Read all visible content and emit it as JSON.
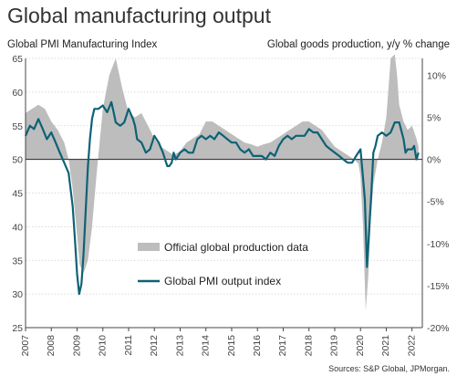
{
  "chart_data": {
    "type": "line",
    "title": "Global manufacturing output",
    "left_axis_title": "Global PMI Manufacturing  Index",
    "right_axis_title": "Global goods production, y/y % change",
    "source": "Sources: S&P Global, JPMorgan.",
    "ylim_left": [
      25,
      65
    ],
    "ylim_right": [
      -20,
      12
    ],
    "left_ticks": [
      "65",
      "60",
      "55",
      "50",
      "45",
      "40",
      "35",
      "30",
      "25"
    ],
    "right_ticks": [
      "10%",
      "5%",
      "0%",
      "-5%",
      "-10%",
      "-15%",
      "-20%"
    ],
    "x_ticks": [
      "2007",
      "2008",
      "2009",
      "2010",
      "2011",
      "2012",
      "2013",
      "2014",
      "2015",
      "2016",
      "2017",
      "2018",
      "2019",
      "2020",
      "2021",
      "2022"
    ],
    "series": [
      {
        "name": "Official global production data",
        "type": "area",
        "axis": "right",
        "color": "#bdbdbd",
        "x": [
          2007.0,
          2007.25,
          2007.5,
          2007.75,
          2008.0,
          2008.25,
          2008.5,
          2008.67,
          2008.83,
          2009.0,
          2009.1,
          2009.25,
          2009.42,
          2009.58,
          2009.75,
          2010.0,
          2010.25,
          2010.5,
          2010.75,
          2011.0,
          2011.25,
          2011.5,
          2011.75,
          2012.0,
          2012.25,
          2012.5,
          2012.75,
          2013.0,
          2013.25,
          2013.5,
          2013.75,
          2014.0,
          2014.25,
          2014.5,
          2014.75,
          2015.0,
          2015.25,
          2015.5,
          2015.75,
          2016.0,
          2016.25,
          2016.5,
          2016.75,
          2017.0,
          2017.25,
          2017.5,
          2017.75,
          2018.0,
          2018.25,
          2018.5,
          2018.75,
          2019.0,
          2019.25,
          2019.5,
          2019.75,
          2019.92,
          2020.0,
          2020.1,
          2020.2,
          2020.3,
          2020.4,
          2020.5,
          2020.67,
          2020.83,
          2021.0,
          2021.17,
          2021.33,
          2021.42,
          2021.5,
          2021.67,
          2021.83,
          2022.0,
          2022.17,
          2022.25
        ],
        "y": [
          5.5,
          6.0,
          6.5,
          6.0,
          4.5,
          3.5,
          2.0,
          0.0,
          -3.5,
          -9.0,
          -12.5,
          -13.5,
          -12.0,
          -8.0,
          -2.0,
          6.0,
          10.0,
          12.0,
          8.5,
          5.5,
          5.0,
          5.5,
          4.0,
          2.5,
          1.5,
          1.0,
          0.5,
          1.0,
          2.0,
          2.5,
          3.0,
          4.5,
          4.5,
          4.0,
          3.5,
          3.0,
          2.5,
          2.0,
          1.8,
          1.5,
          1.8,
          2.0,
          2.5,
          3.0,
          3.5,
          4.0,
          4.5,
          4.5,
          4.0,
          3.5,
          2.5,
          1.5,
          1.0,
          0.5,
          0.0,
          -0.5,
          -2.0,
          -8.0,
          -18.0,
          -14.0,
          -7.0,
          -3.0,
          0.0,
          2.0,
          5.0,
          12.0,
          12.5,
          10.0,
          6.5,
          4.5,
          3.5,
          4.0,
          2.5,
          1.5
        ]
      },
      {
        "name": "Global PMI output index",
        "type": "line",
        "axis": "left",
        "color": "#0d6275",
        "x": [
          2007.0,
          2007.17,
          2007.33,
          2007.5,
          2007.67,
          2007.83,
          2008.0,
          2008.17,
          2008.33,
          2008.5,
          2008.67,
          2008.83,
          2008.92,
          2009.0,
          2009.08,
          2009.17,
          2009.25,
          2009.33,
          2009.42,
          2009.5,
          2009.58,
          2009.67,
          2009.83,
          2010.0,
          2010.17,
          2010.33,
          2010.42,
          2010.5,
          2010.67,
          2010.83,
          2011.0,
          2011.17,
          2011.25,
          2011.33,
          2011.5,
          2011.67,
          2011.83,
          2012.0,
          2012.17,
          2012.33,
          2012.5,
          2012.58,
          2012.67,
          2012.75,
          2012.83,
          2013.0,
          2013.17,
          2013.33,
          2013.5,
          2013.67,
          2013.83,
          2014.0,
          2014.17,
          2014.33,
          2014.5,
          2014.67,
          2014.83,
          2015.0,
          2015.17,
          2015.33,
          2015.5,
          2015.67,
          2015.83,
          2016.0,
          2016.17,
          2016.33,
          2016.5,
          2016.67,
          2016.83,
          2017.0,
          2017.17,
          2017.33,
          2017.5,
          2017.67,
          2017.83,
          2018.0,
          2018.17,
          2018.33,
          2018.5,
          2018.67,
          2018.83,
          2019.0,
          2019.17,
          2019.33,
          2019.5,
          2019.67,
          2019.83,
          2020.0,
          2020.08,
          2020.17,
          2020.25,
          2020.33,
          2020.42,
          2020.5,
          2020.58,
          2020.67,
          2020.83,
          2021.0,
          2021.17,
          2021.33,
          2021.5,
          2021.67,
          2021.75,
          2021.83,
          2022.0,
          2022.08,
          2022.17,
          2022.25
        ],
        "y": [
          53.5,
          55.0,
          54.5,
          56.0,
          54.5,
          53.0,
          54.0,
          52.5,
          51.0,
          49.5,
          48.0,
          43.0,
          38.0,
          33.0,
          30.0,
          31.5,
          36.0,
          42.0,
          49.0,
          53.0,
          56.0,
          57.5,
          57.5,
          58.0,
          57.0,
          58.5,
          57.0,
          55.5,
          55.0,
          55.5,
          57.5,
          56.0,
          55.0,
          53.0,
          52.5,
          51.0,
          51.5,
          53.5,
          52.5,
          51.0,
          49.0,
          49.0,
          49.5,
          51.0,
          50.0,
          51.0,
          51.5,
          51.0,
          51.0,
          53.0,
          53.5,
          53.0,
          53.5,
          53.0,
          54.0,
          53.5,
          53.0,
          52.5,
          52.5,
          51.5,
          51.0,
          51.5,
          50.5,
          50.5,
          50.5,
          50.0,
          51.0,
          50.5,
          52.0,
          53.0,
          53.5,
          53.0,
          53.5,
          53.5,
          53.5,
          54.5,
          54.0,
          54.0,
          53.0,
          52.0,
          51.5,
          51.0,
          50.5,
          50.0,
          49.5,
          49.5,
          50.5,
          51.5,
          48.0,
          44.0,
          34.0,
          39.0,
          45.0,
          51.0,
          52.0,
          53.5,
          54.0,
          53.5,
          54.0,
          55.5,
          55.5,
          53.0,
          51.0,
          51.5,
          51.5,
          52.0,
          50.0,
          51.0
        ]
      }
    ]
  }
}
